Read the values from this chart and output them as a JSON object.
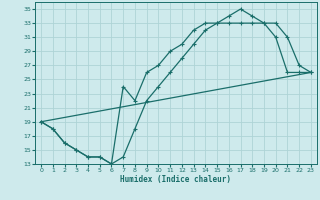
{
  "xlabel": "Humidex (Indice chaleur)",
  "background_color": "#ceeaec",
  "grid_color": "#aed4d6",
  "line_color": "#1a6e6a",
  "xlim": [
    -0.5,
    23.5
  ],
  "ylim": [
    13,
    36
  ],
  "xticks": [
    0,
    1,
    2,
    3,
    4,
    5,
    6,
    7,
    8,
    9,
    10,
    11,
    12,
    13,
    14,
    15,
    16,
    17,
    18,
    19,
    20,
    21,
    22,
    23
  ],
  "yticks": [
    13,
    15,
    17,
    19,
    21,
    23,
    25,
    27,
    29,
    31,
    33,
    35
  ],
  "line1_x": [
    0,
    1,
    2,
    3,
    4,
    5,
    6,
    7,
    8,
    9,
    10,
    11,
    12,
    13,
    14,
    15,
    16,
    17,
    18,
    19,
    20,
    21,
    22,
    23
  ],
  "line1_y": [
    19,
    18,
    16,
    15,
    14,
    14,
    13,
    14,
    18,
    22,
    24,
    26,
    28,
    30,
    32,
    33,
    34,
    35,
    34,
    33,
    33,
    31,
    27,
    26
  ],
  "line2_x": [
    0,
    1,
    2,
    3,
    4,
    5,
    6,
    7,
    8,
    9,
    10,
    11,
    12,
    13,
    14,
    15,
    16,
    17,
    18,
    19,
    20,
    21,
    22,
    23
  ],
  "line2_y": [
    19,
    18,
    16,
    15,
    14,
    14,
    13,
    24,
    22,
    26,
    27,
    29,
    30,
    32,
    33,
    33,
    33,
    33,
    33,
    33,
    31,
    26,
    26,
    26
  ],
  "line3_x": [
    0,
    23
  ],
  "line3_y": [
    19,
    26
  ]
}
